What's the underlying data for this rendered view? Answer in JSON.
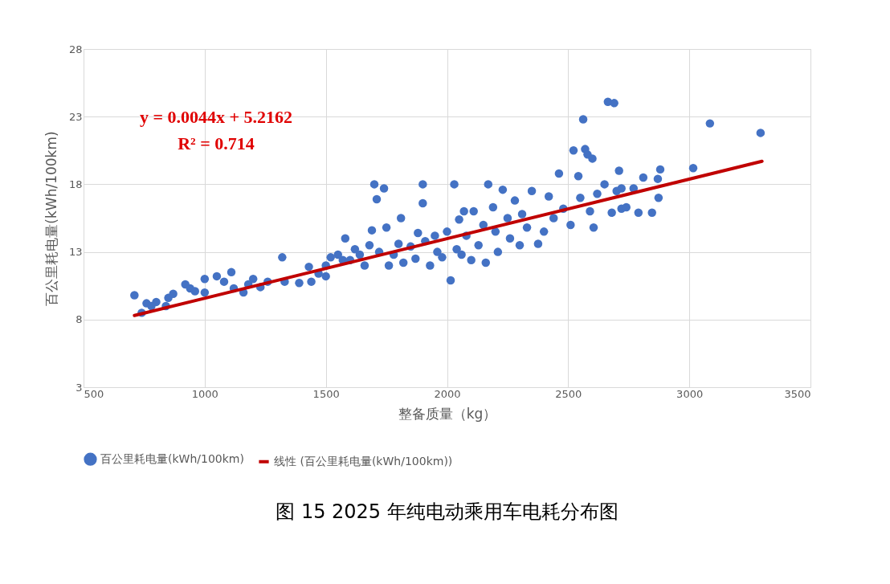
{
  "chart_data": {
    "type": "scatter",
    "title": "图 15 2025 年纯电动乘用车电耗分布图",
    "xlabel": "整备质量（kg）",
    "ylabel": "百公里耗电量(kWh/100km)",
    "xlim": [
      500,
      3500
    ],
    "xticks": [
      500,
      1000,
      1500,
      2000,
      2500,
      3000,
      3500
    ],
    "ylim": [
      3,
      28
    ],
    "yticks": [
      3,
      8,
      13,
      18,
      23,
      28
    ],
    "grid": true,
    "legend": "bottom",
    "marker": "circle",
    "annotations": [
      "y = 0.0044x + 5.2162",
      "R² = 0.714"
    ],
    "series": [
      {
        "name": "百公里耗电量(kWh/100km)",
        "color": "#4472c4",
        "x": [
          710,
          740,
          760,
          780,
          800,
          840,
          850,
          870,
          920,
          940,
          960,
          1000,
          1000,
          1050,
          1080,
          1110,
          1120,
          1160,
          1180,
          1200,
          1230,
          1260,
          1320,
          1330,
          1390,
          1430,
          1440,
          1470,
          1500,
          1500,
          1520,
          1550,
          1570,
          1580,
          1600,
          1620,
          1640,
          1660,
          1680,
          1690,
          1700,
          1710,
          1720,
          1740,
          1750,
          1760,
          1780,
          1800,
          1810,
          1820,
          1850,
          1870,
          1880,
          1900,
          1900,
          1910,
          1930,
          1950,
          1960,
          1980,
          2000,
          2015,
          2030,
          2040,
          2050,
          2060,
          2070,
          2080,
          2100,
          2110,
          2130,
          2150,
          2160,
          2170,
          2190,
          2200,
          2210,
          2230,
          2250,
          2260,
          2280,
          2300,
          2310,
          2330,
          2350,
          2376,
          2400,
          2420,
          2440,
          2462,
          2480,
          2510,
          2522,
          2542,
          2550,
          2562,
          2570,
          2580,
          2590,
          2600,
          2605,
          2620,
          2650,
          2664,
          2690,
          2680,
          2700,
          2710,
          2720,
          2720,
          2740,
          2770,
          2790,
          2810,
          2846,
          2873,
          2870,
          2880,
          3016,
          3085,
          3294
        ],
        "values": [
          9.8,
          8.5,
          9.2,
          9.0,
          9.3,
          9.0,
          9.6,
          9.9,
          10.6,
          10.3,
          10.1,
          11.0,
          10.0,
          11.2,
          10.8,
          11.5,
          10.3,
          10.0,
          10.6,
          11.0,
          10.4,
          10.8,
          12.6,
          10.8,
          10.7,
          11.9,
          10.8,
          11.4,
          12.0,
          11.2,
          12.6,
          12.8,
          12.4,
          14.0,
          12.4,
          13.2,
          12.8,
          12.0,
          13.5,
          14.6,
          18.0,
          16.9,
          13.0,
          17.7,
          14.8,
          12.0,
          12.8,
          13.6,
          15.5,
          12.2,
          13.4,
          12.5,
          14.4,
          18.0,
          16.6,
          13.8,
          12.0,
          14.2,
          13.0,
          12.6,
          14.5,
          10.9,
          18.0,
          13.2,
          15.4,
          12.8,
          16.0,
          14.2,
          12.4,
          16.0,
          13.5,
          15.0,
          12.2,
          18.0,
          16.3,
          14.5,
          13.0,
          17.6,
          15.5,
          14.0,
          16.8,
          13.5,
          15.8,
          14.8,
          17.5,
          13.6,
          14.5,
          17.1,
          15.5,
          18.8,
          16.2,
          15.0,
          20.5,
          18.6,
          17.0,
          22.8,
          20.6,
          20.2,
          16.0,
          19.9,
          14.8,
          17.3,
          18.0,
          24.1,
          24.0,
          15.9,
          17.5,
          19.0,
          16.2,
          17.7,
          16.3,
          17.7,
          15.9,
          18.5,
          15.9,
          17.0,
          18.4,
          19.1,
          19.2,
          22.5,
          21.8
        ]
      },
      {
        "name": "线性 (百公里耗电量(kWh/100km))",
        "type": "line",
        "color": "#c00000",
        "line_style": "solid",
        "marker": "none",
        "x": [
          710,
          3300
        ],
        "values": [
          8.3,
          19.7
        ]
      }
    ]
  }
}
